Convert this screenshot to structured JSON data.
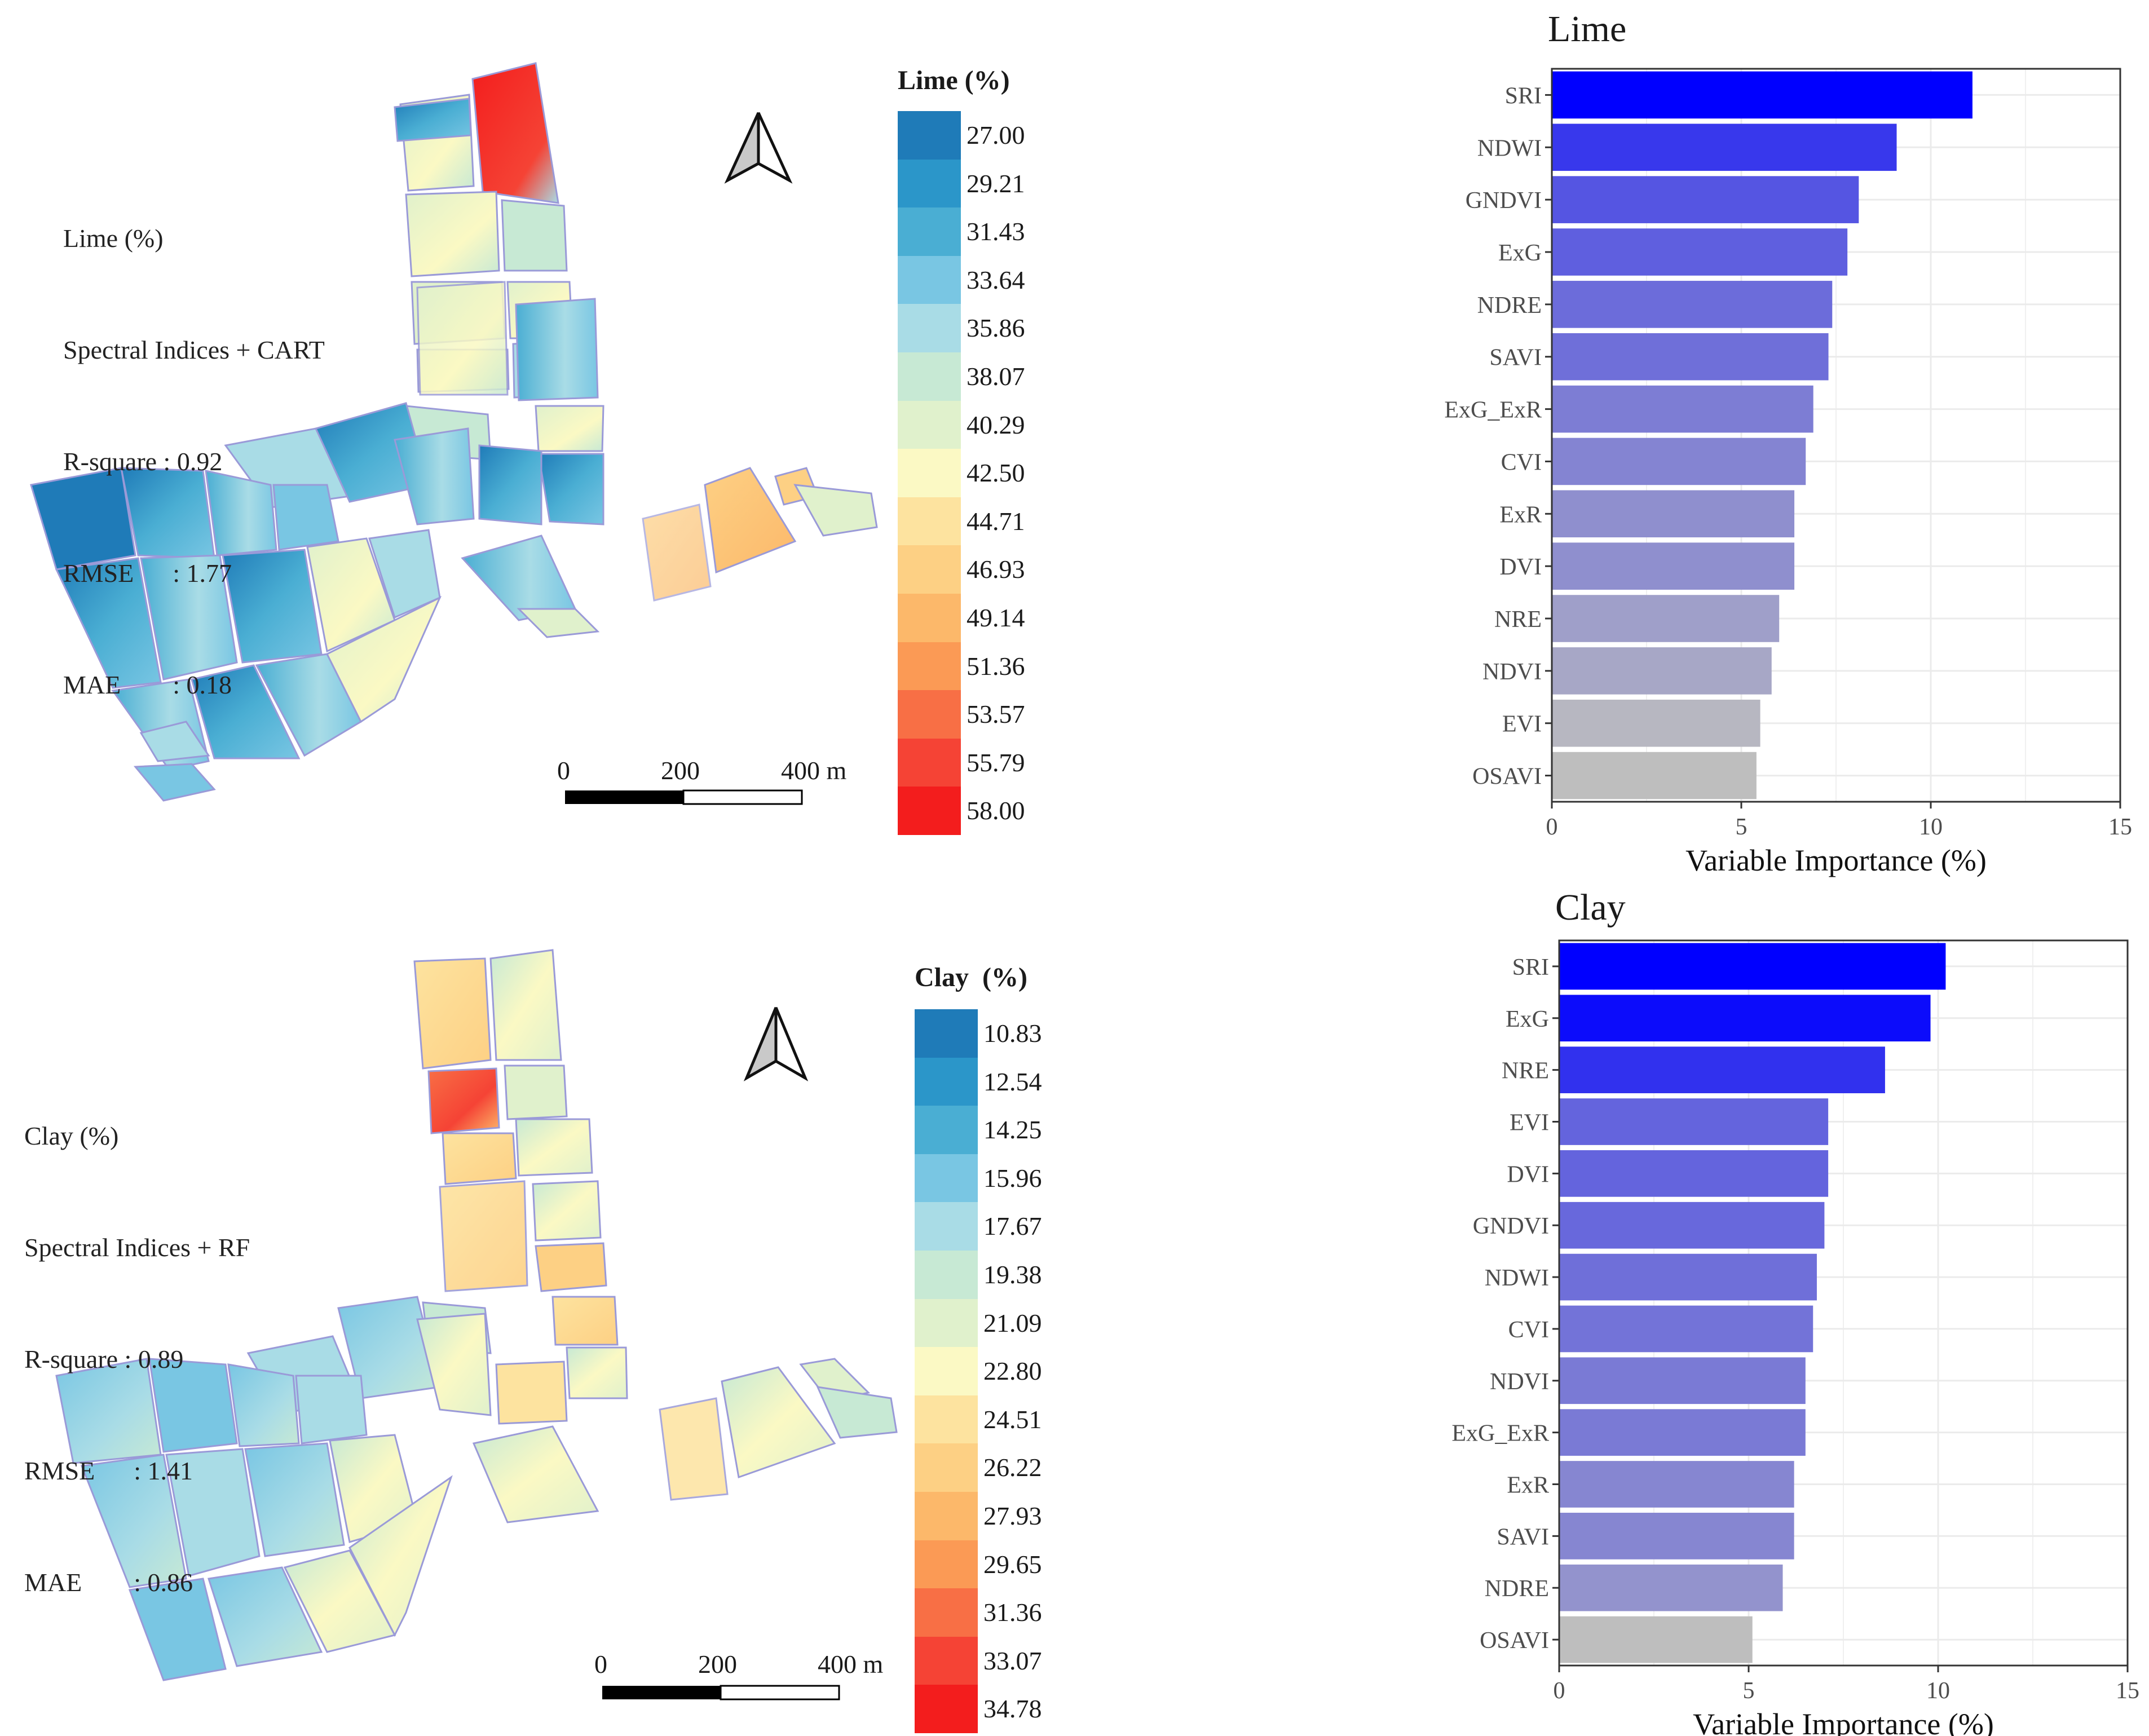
{
  "colors": {
    "bar_top": "#0000ff",
    "bar_bottom": "#bebebe",
    "grid": "#ebebeb",
    "panel_border": "#333333",
    "axis_text": "#4d4d4d",
    "map_outline": "#9a9ad8"
  },
  "maps": [
    {
      "id": "lime-map",
      "stats": {
        "line1": "Lime (%)",
        "line2": "Spectral Indices + CART",
        "line3": "R-square : 0.92",
        "line4": "RMSE      : 1.77",
        "line5": "MAE        : 0.18"
      },
      "legend": {
        "title": "Lime (%)",
        "values": [
          "27.00",
          "29.21",
          "31.43",
          "33.64",
          "35.86",
          "38.07",
          "40.29",
          "42.50",
          "44.71",
          "46.93",
          "49.14",
          "51.36",
          "53.57",
          "55.79",
          "58.00"
        ],
        "colors": [
          "#1f7bb8",
          "#2b96c9",
          "#4aaed3",
          "#79c6e3",
          "#a9dce6",
          "#c7e9d4",
          "#e0f1cc",
          "#fbf9c4",
          "#fde39f",
          "#fdd084",
          "#fcb86a",
          "#fb9a55",
          "#f86f45",
          "#f54335",
          "#f31d1d"
        ]
      },
      "scalebar": {
        "tick0": "0",
        "tick1": "200",
        "tick2": "400 m"
      },
      "north_icon": "north-arrow-icon"
    },
    {
      "id": "clay-map",
      "stats": {
        "line1": "Clay (%)",
        "line2": "Spectral Indices + RF",
        "line3": "R-square : 0.89",
        "line4": "RMSE      : 1.41",
        "line5": "MAE        : 0.86"
      },
      "legend": {
        "title": "Clay  (%)",
        "values": [
          "10.83",
          "12.54",
          "14.25",
          "15.96",
          "17.67",
          "19.38",
          "21.09",
          "22.80",
          "24.51",
          "26.22",
          "27.93",
          "29.65",
          "31.36",
          "33.07",
          "34.78"
        ],
        "colors": [
          "#1f7bb8",
          "#2b96c9",
          "#4aaed3",
          "#79c6e3",
          "#a9dce6",
          "#c7e9d4",
          "#e0f1cc",
          "#fbf9c4",
          "#fde39f",
          "#fdd084",
          "#fcb86a",
          "#fb9a55",
          "#f86f45",
          "#f54335",
          "#f31d1d"
        ]
      },
      "scalebar": {
        "tick0": "0",
        "tick1": "200",
        "tick2": "400 m"
      },
      "north_icon": "north-arrow-icon"
    }
  ],
  "chart_data": [
    {
      "type": "bar",
      "orientation": "horizontal",
      "title": "Lime",
      "xlabel": "Variable Importance (%)",
      "ylabel": "",
      "xlim": [
        0,
        15
      ],
      "xticks": [
        0,
        5,
        10,
        15
      ],
      "grid": true,
      "categories": [
        "SRI",
        "NDWI",
        "GNDVI",
        "ExG",
        "NDRE",
        "SAVI",
        "ExG_ExR",
        "CVI",
        "ExR",
        "DVI",
        "NRE",
        "NDVI",
        "EVI",
        "OSAVI"
      ],
      "values": [
        11.1,
        9.1,
        8.1,
        7.8,
        7.4,
        7.3,
        6.9,
        6.7,
        6.4,
        6.4,
        6.0,
        5.8,
        5.5,
        5.4
      ]
    },
    {
      "type": "bar",
      "orientation": "horizontal",
      "title": "Clay",
      "xlabel": "Variable Importance (%)",
      "ylabel": "",
      "xlim": [
        0,
        15
      ],
      "xticks": [
        0,
        5,
        10,
        15
      ],
      "grid": true,
      "categories": [
        "SRI",
        "ExG",
        "NRE",
        "EVI",
        "DVI",
        "GNDVI",
        "NDWI",
        "CVI",
        "NDVI",
        "ExG_ExR",
        "ExR",
        "SAVI",
        "NDRE",
        "OSAVI"
      ],
      "values": [
        10.2,
        9.8,
        8.6,
        7.1,
        7.1,
        7.0,
        6.8,
        6.7,
        6.5,
        6.5,
        6.2,
        6.2,
        5.9,
        5.1
      ]
    }
  ]
}
